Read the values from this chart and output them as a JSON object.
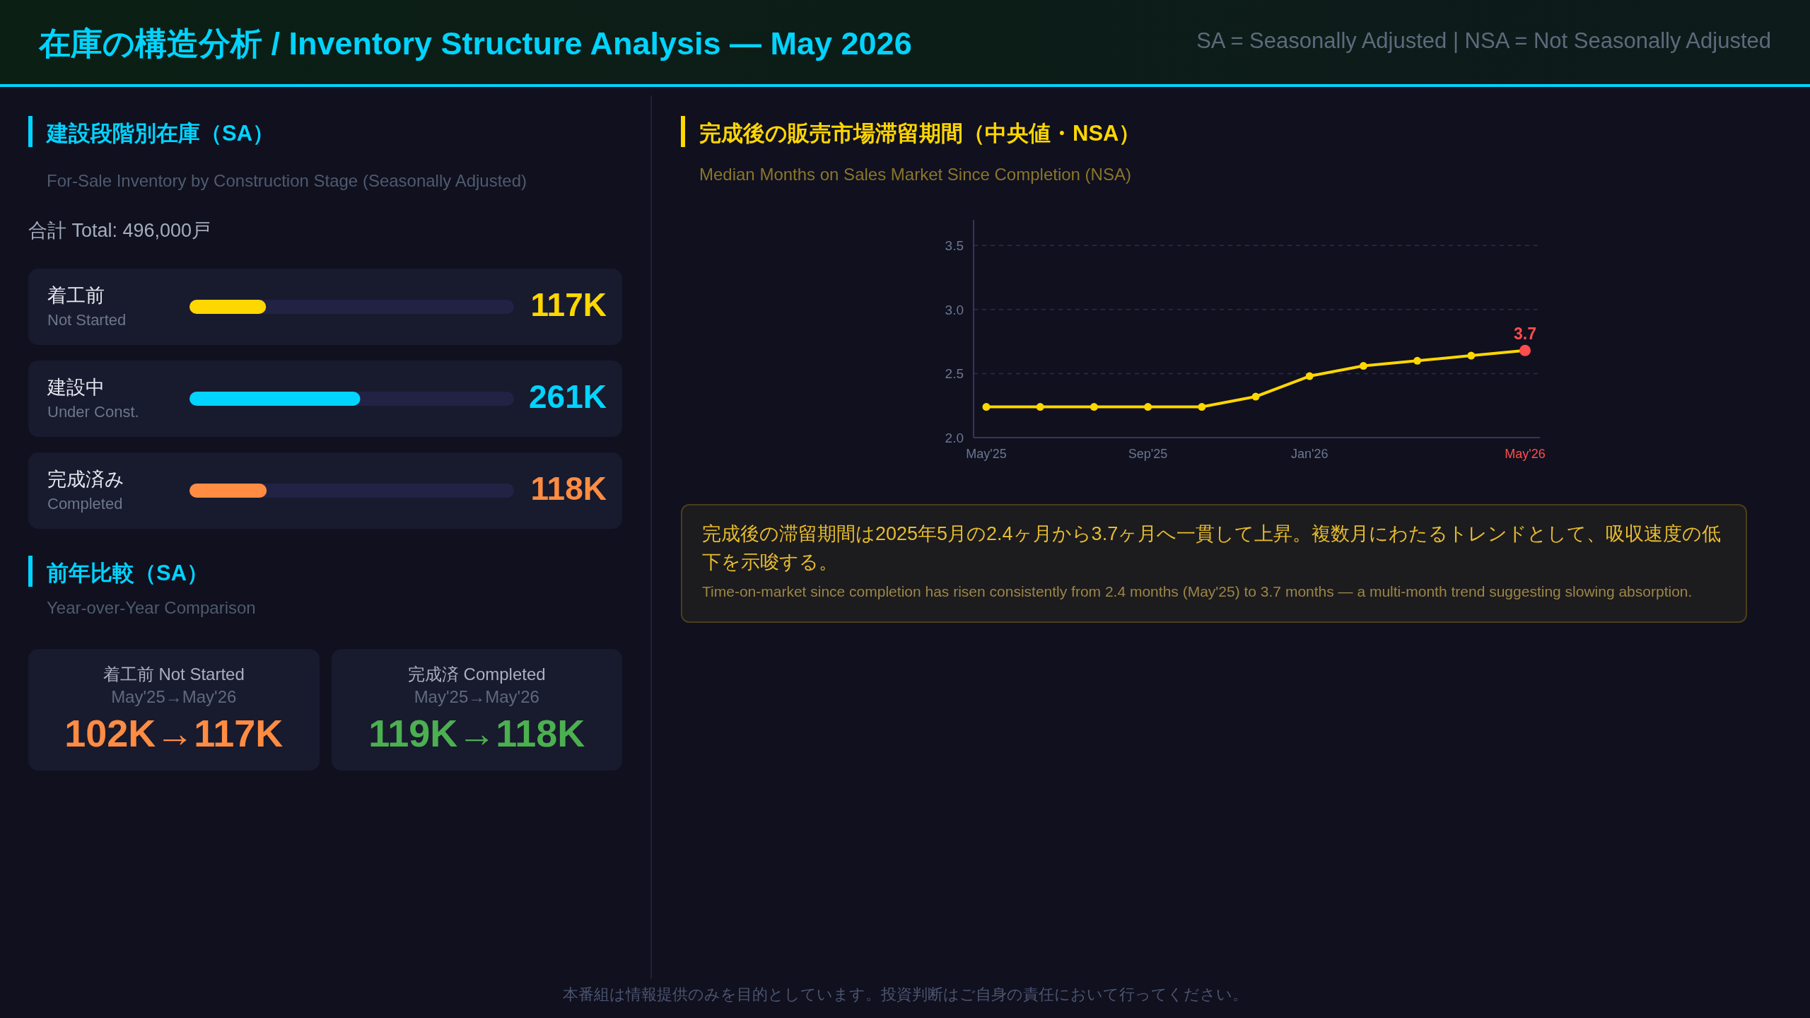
{
  "chart_data": [
    {
      "type": "other",
      "title": "在庫の構造分析 / Inventory Structure Analysis — May 2026",
      "subtitle": "SA = Seasonally Adjusted | NSA = Not Seasonally Adjusted",
      "annotations": [
        "本番組は情報提供のみを目的としています。投資判断はご自身の責任において行ってください。"
      ]
    },
    {
      "type": "bar",
      "orientation": "horizontal",
      "title": "建設段階別在庫（SA）",
      "subtitle": "For-Sale Inventory by Construction Stage (Seasonally Adjusted)",
      "annotations": [
        "合計 Total: 496,000戸"
      ],
      "categories": [
        "着工前\nNot Started",
        "建設中\nUnder Const.",
        "完成済み\nCompleted"
      ],
      "values": [
        117,
        261,
        118
      ],
      "colors": [
        "#ffd700",
        "#00d4ff",
        "#ff8c42"
      ],
      "value_labels": [
        "117K",
        "261K",
        "118K"
      ],
      "xlim": [
        0,
        496
      ]
    },
    {
      "type": "other",
      "title": "前年比較（SA）",
      "subtitle": "Year-over-Year Comparison",
      "annotations": [
        "着工前 Not Started",
        "May'25→May'26",
        "102K→117K",
        "完成済 Completed",
        "May'25→May'26",
        "119K→118K"
      ],
      "colors": [
        "#ff8c42",
        "#4caf50"
      ]
    },
    {
      "type": "line",
      "title": "完成後の販売市場滞留期間（中央値・NSA）",
      "subtitle": "Median Months on Sales Market Since Completion (NSA)",
      "annotations": [
        {
          "text": "3.7",
          "x": "May'26",
          "y": 2.68
        },
        "完成後の滞留期間は2025年5月の2.4ヶ月から3.7ヶ月へ一貫して上昇。複数月にわたるトレンドとして、吸収速度の低下を示唆する。",
        "Time-on-market since completion has risen consistently from 2.4 months (May'25) to 3.7 months — a multi-month trend suggesting slowing absorption."
      ],
      "categories": [
        "May'25",
        null,
        null,
        "Sep'25",
        null,
        null,
        "Jan'26",
        null,
        null,
        null,
        "May'26"
      ],
      "series": [
        {
          "color": "#ffd700",
          "values": [
            2.24,
            2.24,
            2.24,
            2.24,
            2.24,
            2.32,
            2.48,
            2.56,
            2.6,
            2.64,
            2.68
          ],
          "colors": [
            "#ffd700",
            "#ffd700",
            "#ffd700",
            "#ffd700",
            "#ffd700",
            "#ffd700",
            "#ffd700",
            "#ffd700",
            "#ffd700",
            "#ffd700",
            "#ff4d4d"
          ]
        }
      ],
      "ylim": [
        2.0,
        3.7
      ],
      "yticks": [
        {
          "value": 2.0,
          "label": "2.0"
        },
        {
          "value": 2.5,
          "label": "2.5"
        },
        {
          "value": 3.0,
          "label": "3.0"
        },
        {
          "value": 3.5,
          "label": "3.5"
        }
      ],
      "grid": "y",
      "marker": "circle",
      "line_style": "solid"
    }
  ]
}
